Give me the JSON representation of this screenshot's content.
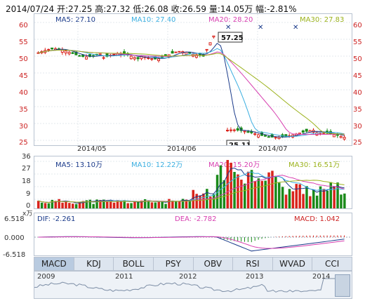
{
  "header": {
    "text": "2014/07/24 开:27.25 高:27.32 低:26.08 收:26.59 量:14.05万 幅:-2.81%"
  },
  "price_panel": {
    "ma5": "MA5: 27.10",
    "ma10": "MA10: 27.40",
    "ma20": "MA20: 28.20",
    "ma30": "MA30: 27.83",
    "high_callout": "57.25",
    "low_callout": "25.11",
    "y_ticks": [
      "60",
      "55",
      "50",
      "45",
      "40",
      "35",
      "30",
      "25"
    ],
    "x_ticks": [
      "2014/05",
      "2014/06",
      "2014/07"
    ]
  },
  "volume_panel": {
    "ma5": "MA5: 13.10万",
    "ma10": "MA10: 12.22万",
    "ma20": "MA20: 15.20万",
    "ma30": "MA30: 16.51万",
    "y_ticks": [
      "36",
      "27",
      "18",
      "9",
      "0"
    ],
    "unit": "x万"
  },
  "macd_panel": {
    "dif": "DIF: -2.261",
    "dea": "DEA: -2.782",
    "macd": "MACD: 1.042",
    "y_ticks": [
      "6.518",
      "0.000",
      "-6.518"
    ]
  },
  "tabs": [
    "MACD",
    "KDJ",
    "BOLL",
    "PSY",
    "OBV",
    "RSI",
    "WVAD",
    "CCI"
  ],
  "timeline": {
    "years": [
      "2009",
      "2011",
      "2012",
      "2013",
      "2014"
    ]
  },
  "colors": {
    "up": "#d9241c",
    "down": "#1a8a1a",
    "ma5": "#1a3a8a",
    "ma10": "#3aaee0",
    "ma20": "#d73fb0",
    "ma30": "#9bb21c"
  }
}
